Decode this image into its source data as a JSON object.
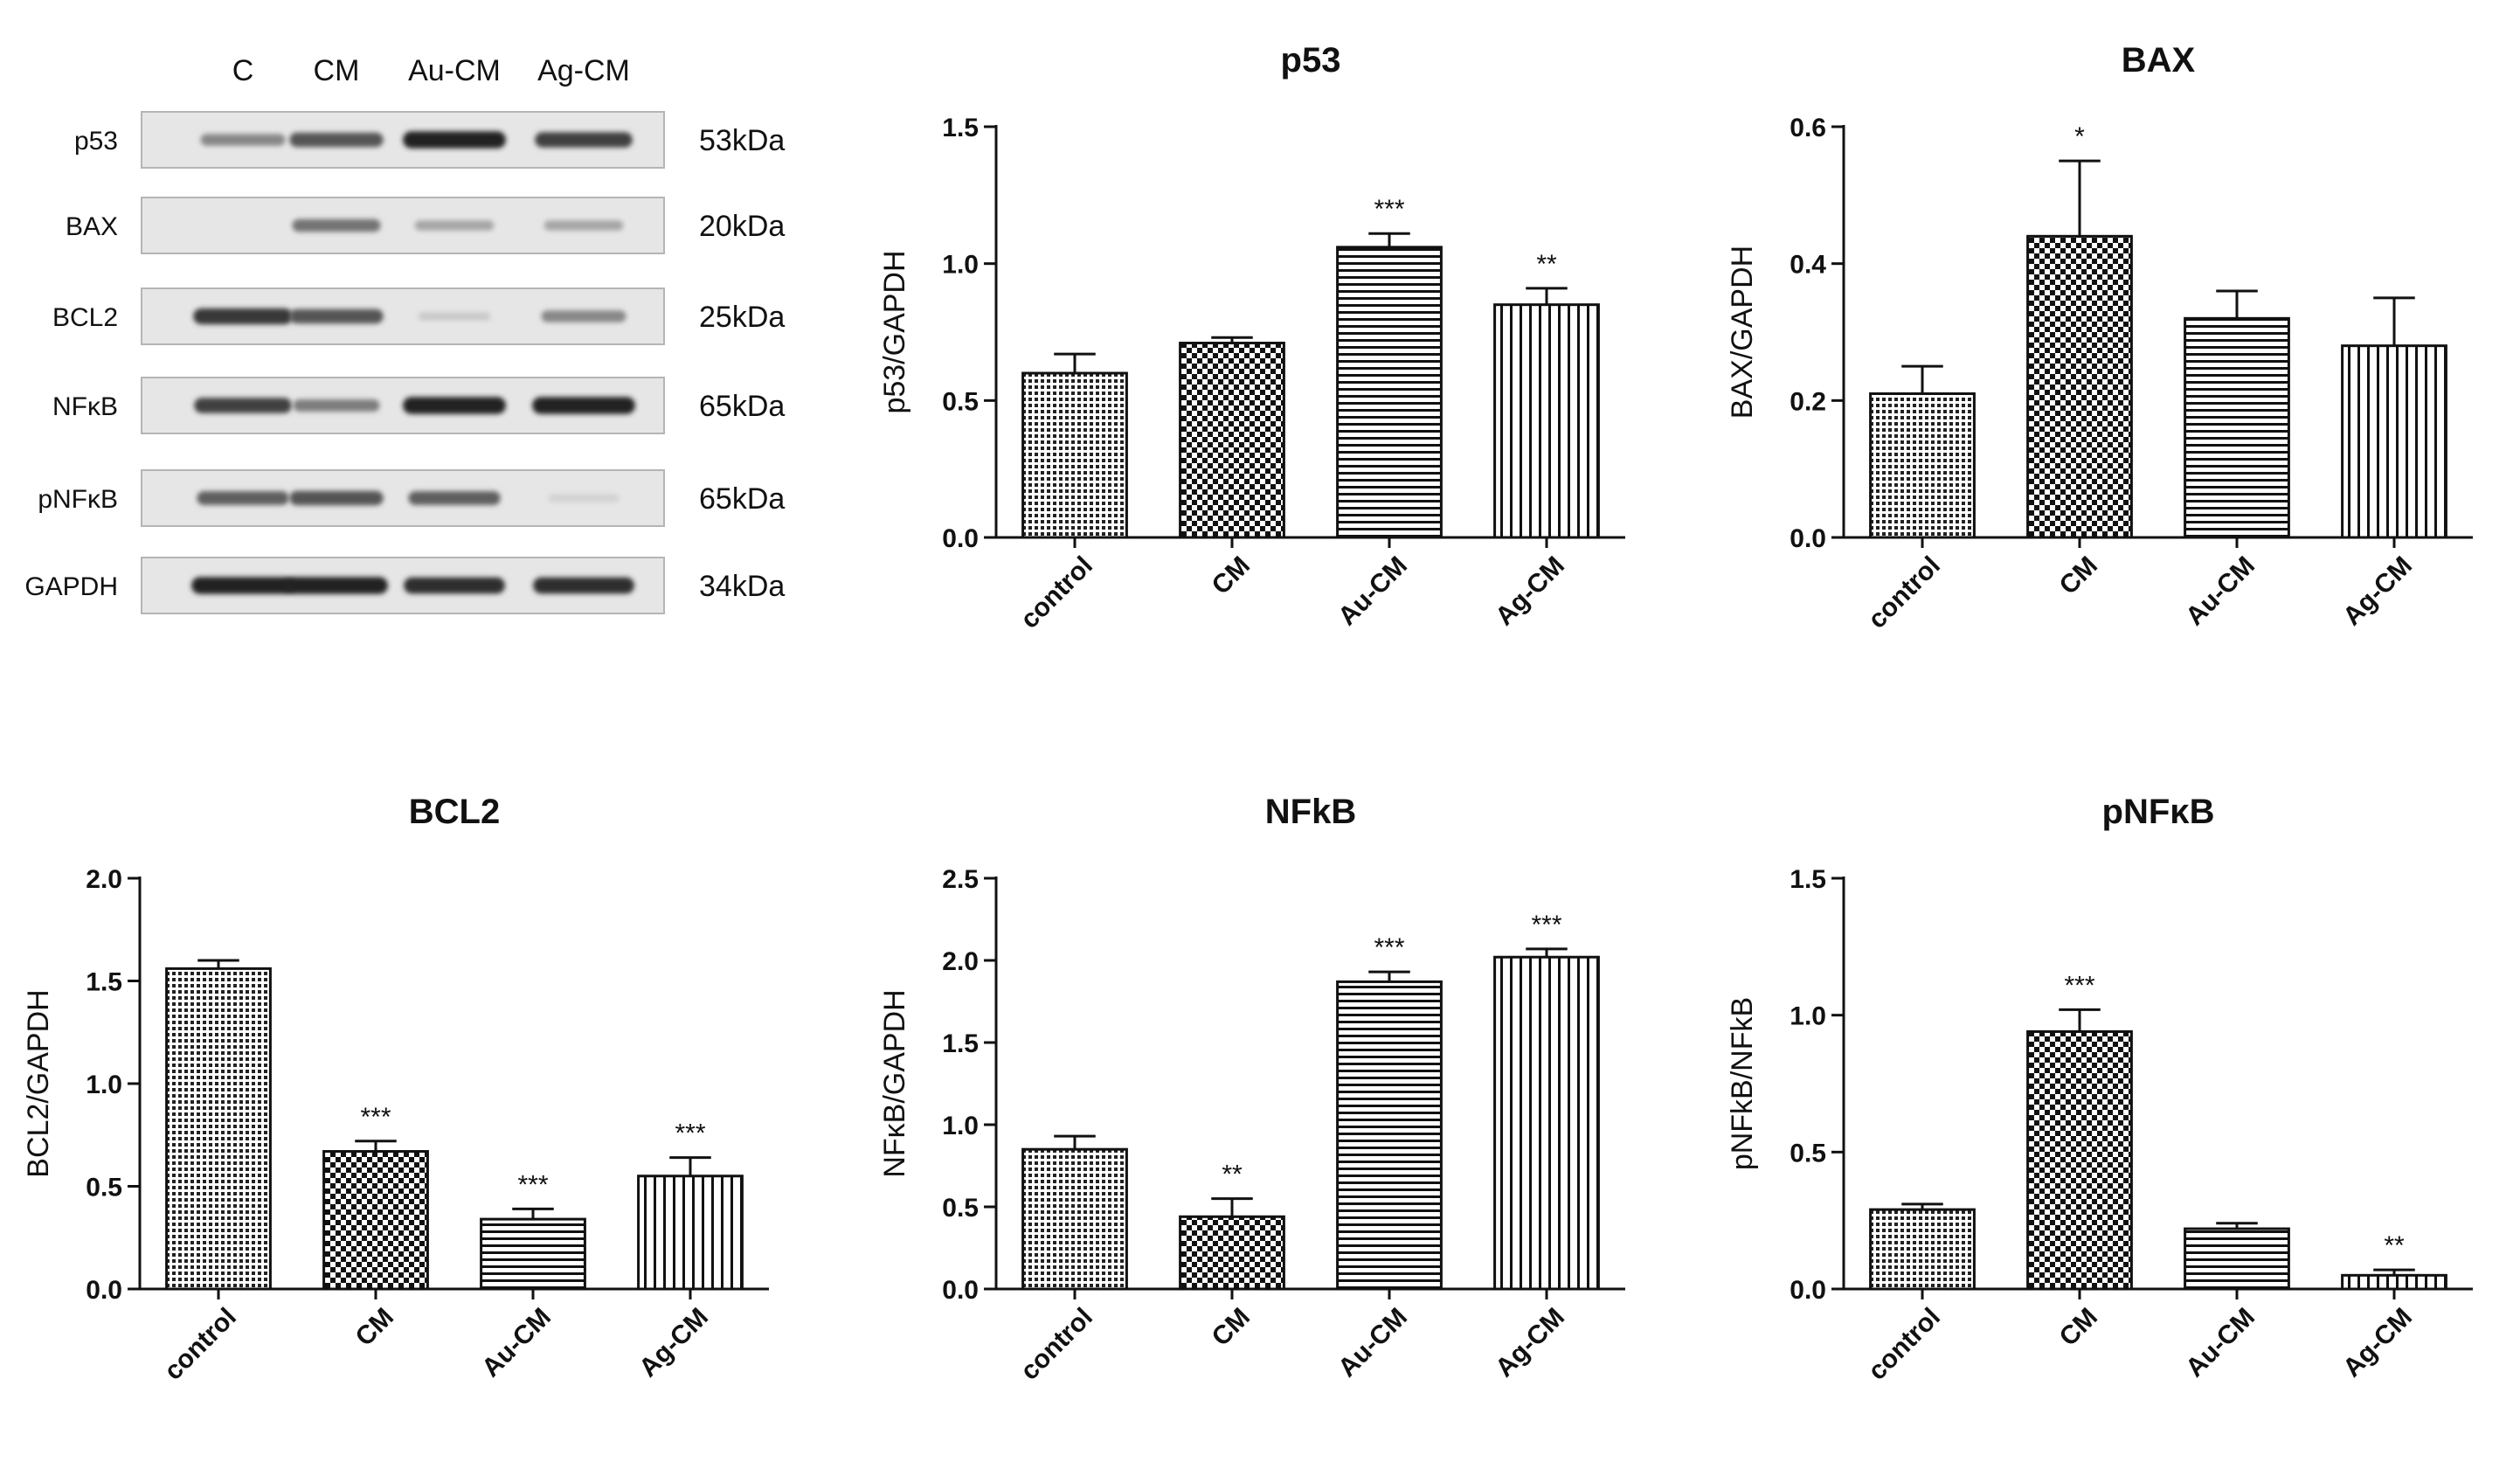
{
  "western_blot": {
    "lanes": [
      "C",
      "CM",
      "Au-CM",
      "Ag-CM"
    ],
    "rows": [
      {
        "protein": "p53",
        "size": "53kDa",
        "band_intensity": [
          0.45,
          0.7,
          0.95,
          0.8
        ]
      },
      {
        "protein": "BAX",
        "size": "20kDa",
        "band_intensity": [
          0.0,
          0.55,
          0.3,
          0.3
        ]
      },
      {
        "protein": "BCL2",
        "size": "25kDa",
        "band_intensity": [
          0.85,
          0.7,
          0.12,
          0.45
        ]
      },
      {
        "protein": "NFκB",
        "size": "65kDa",
        "band_intensity": [
          0.8,
          0.5,
          0.95,
          0.95
        ]
      },
      {
        "protein": "pNFκB",
        "size": "65kDa",
        "band_intensity": [
          0.65,
          0.7,
          0.65,
          0.08
        ]
      },
      {
        "protein": "GAPDH",
        "size": "34kDa",
        "band_intensity": [
          0.95,
          0.95,
          0.9,
          0.9
        ]
      }
    ]
  },
  "chart_data": [
    {
      "type": "bar",
      "title": "p53",
      "xlabel": "",
      "ylabel": "p53/GAPDH",
      "categories": [
        "control",
        "CM",
        "Au-CM",
        "Ag-CM"
      ],
      "values": [
        0.6,
        0.71,
        1.06,
        0.85
      ],
      "errors": [
        0.07,
        0.02,
        0.05,
        0.06
      ],
      "significance": [
        "",
        "",
        "***",
        "**"
      ],
      "ylim": [
        0,
        1.5
      ],
      "yticks": [
        0.0,
        0.5,
        1.0,
        1.5
      ],
      "ytick_labels": [
        "0.0",
        "0.5",
        "1.0",
        "1.5"
      ],
      "patterns": [
        "dots",
        "checker",
        "hlines",
        "vlines"
      ]
    },
    {
      "type": "bar",
      "title": "BAX",
      "xlabel": "",
      "ylabel": "BAX/GAPDH",
      "categories": [
        "control",
        "CM",
        "Au-CM",
        "Ag-CM"
      ],
      "values": [
        0.21,
        0.44,
        0.32,
        0.28
      ],
      "errors": [
        0.04,
        0.11,
        0.04,
        0.07
      ],
      "significance": [
        "",
        "*",
        "",
        ""
      ],
      "ylim": [
        0,
        0.6
      ],
      "yticks": [
        0.0,
        0.2,
        0.4,
        0.6
      ],
      "ytick_labels": [
        "0.0",
        "0.2",
        "0.4",
        "0.6"
      ],
      "patterns": [
        "dots",
        "checker",
        "hlines",
        "vlines"
      ]
    },
    {
      "type": "bar",
      "title": "BCL2",
      "xlabel": "",
      "ylabel": "BCL2/GAPDH",
      "categories": [
        "control",
        "CM",
        "Au-CM",
        "Ag-CM"
      ],
      "values": [
        1.56,
        0.67,
        0.34,
        0.55
      ],
      "errors": [
        0.04,
        0.05,
        0.05,
        0.09
      ],
      "significance": [
        "",
        "***",
        "***",
        "***"
      ],
      "ylim": [
        0,
        2.0
      ],
      "yticks": [
        0.0,
        0.5,
        1.0,
        1.5,
        2.0
      ],
      "ytick_labels": [
        "0.0",
        "0.5",
        "1.0",
        "1.5",
        "2.0"
      ],
      "patterns": [
        "dots",
        "checker",
        "hlines",
        "vlines"
      ]
    },
    {
      "type": "bar",
      "title": "NFkB",
      "xlabel": "",
      "ylabel": "NFκB/GAPDH",
      "categories": [
        "control",
        "CM",
        "Au-CM",
        "Ag-CM"
      ],
      "values": [
        0.85,
        0.44,
        1.87,
        2.02
      ],
      "errors": [
        0.08,
        0.11,
        0.06,
        0.05
      ],
      "significance": [
        "",
        "**",
        "***",
        "***"
      ],
      "ylim": [
        0,
        2.5
      ],
      "yticks": [
        0.0,
        0.5,
        1.0,
        1.5,
        2.0,
        2.5
      ],
      "ytick_labels": [
        "0.0",
        "0.5",
        "1.0",
        "1.5",
        "2.0",
        "2.5"
      ],
      "patterns": [
        "dots",
        "checker",
        "hlines",
        "vlines"
      ]
    },
    {
      "type": "bar",
      "title": "pNFκB",
      "xlabel": "",
      "ylabel": "pNFkB/NFkB",
      "categories": [
        "control",
        "CM",
        "Au-CM",
        "Ag-CM"
      ],
      "values": [
        0.29,
        0.94,
        0.22,
        0.05
      ],
      "errors": [
        0.02,
        0.08,
        0.02,
        0.02
      ],
      "significance": [
        "",
        "***",
        "",
        "**"
      ],
      "ylim": [
        0,
        1.5
      ],
      "yticks": [
        0.0,
        0.5,
        1.0,
        1.5
      ],
      "ytick_labels": [
        "0.0",
        "0.5",
        "1.0",
        "1.5"
      ],
      "patterns": [
        "dots",
        "checker",
        "hlines",
        "vlines"
      ]
    }
  ]
}
